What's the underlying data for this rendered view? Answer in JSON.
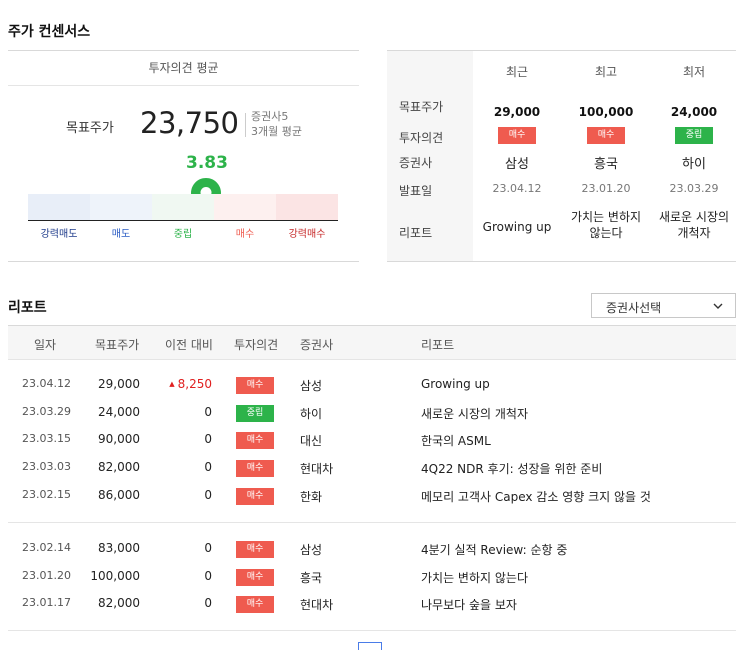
{
  "consensus": {
    "title": "주가 컨센서스",
    "avg_header": "투자의견 평균",
    "target_label": "목표주가",
    "target_price": "23,750",
    "broker_count": "증권사5",
    "period": "3개월 평균",
    "score": "3.83",
    "scale": [
      {
        "label": "강력매도",
        "color": "#1d3a8a",
        "bg": "#e8eef8"
      },
      {
        "label": "매도",
        "color": "#2b5cc4",
        "bg": "#eef3fa"
      },
      {
        "label": "중립",
        "color": "#2db34a",
        "bg": "#f0f8f2"
      },
      {
        "label": "매수",
        "color": "#ef5b4f",
        "bg": "#fdf0ef"
      },
      {
        "label": "강력매수",
        "color": "#c62828",
        "bg": "#fbe4e4"
      }
    ]
  },
  "summary": {
    "row_labels": [
      "목표주가",
      "투자의견",
      "증권사",
      "발표일",
      "리포트"
    ],
    "columns": [
      {
        "head": "최근",
        "price": "29,000",
        "opinion": "매수",
        "opinion_type": "buy",
        "broker": "삼성",
        "date": "23.04.12",
        "report_lines": [
          "Growing up"
        ]
      },
      {
        "head": "최고",
        "price": "100,000",
        "opinion": "매수",
        "opinion_type": "buy",
        "broker": "흥국",
        "date": "23.01.20",
        "report_lines": [
          "가치는 변하지",
          "않는다"
        ]
      },
      {
        "head": "최저",
        "price": "24,000",
        "opinion": "중립",
        "opinion_type": "hold",
        "broker": "하이",
        "date": "23.03.29",
        "report_lines": [
          "새로운 시장의",
          "개척자"
        ]
      }
    ]
  },
  "reports": {
    "title": "리포트",
    "select_label": "증권사선택",
    "headers": [
      "일자",
      "목표주가",
      "이전 대비",
      "투자의견",
      "증권사",
      "리포트"
    ],
    "groups": [
      [
        {
          "date": "23.04.12",
          "price": "29,000",
          "diff": "8,250",
          "diff_up": true,
          "opinion": "매수",
          "type": "buy",
          "broker": "삼성",
          "report": "Growing up"
        },
        {
          "date": "23.03.29",
          "price": "24,000",
          "diff": "0",
          "diff_up": false,
          "opinion": "중립",
          "type": "hold",
          "broker": "하이",
          "report": "새로운 시장의 개척자"
        },
        {
          "date": "23.03.15",
          "price": "90,000",
          "diff": "0",
          "diff_up": false,
          "opinion": "매수",
          "type": "buy",
          "broker": "대신",
          "report": "한국의 ASML"
        },
        {
          "date": "23.03.03",
          "price": "82,000",
          "diff": "0",
          "diff_up": false,
          "opinion": "매수",
          "type": "buy",
          "broker": "현대차",
          "report": "4Q22 NDR 후기: 성장을 위한 준비"
        },
        {
          "date": "23.02.15",
          "price": "86,000",
          "diff": "0",
          "diff_up": false,
          "opinion": "매수",
          "type": "buy",
          "broker": "한화",
          "report": "메모리 고객사 Capex 감소 영향 크지 않을 것"
        }
      ],
      [
        {
          "date": "23.02.14",
          "price": "83,000",
          "diff": "0",
          "diff_up": false,
          "opinion": "매수",
          "type": "buy",
          "broker": "삼성",
          "report": "4분기 실적 Review: 순항 중"
        },
        {
          "date": "23.01.20",
          "price": "100,000",
          "diff": "0",
          "diff_up": false,
          "opinion": "매수",
          "type": "buy",
          "broker": "흥국",
          "report": "가치는 변하지 않는다"
        },
        {
          "date": "23.01.17",
          "price": "82,000",
          "diff": "0",
          "diff_up": false,
          "opinion": "매수",
          "type": "buy",
          "broker": "현대차",
          "report": "나무보다 숲을 보자"
        }
      ]
    ]
  }
}
